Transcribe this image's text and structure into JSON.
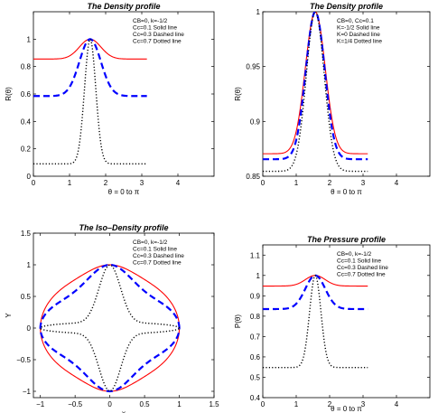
{
  "chart_data": [
    {
      "type": "line",
      "title": "The Density profile",
      "xlabel": "θ = 0 to π",
      "ylabel": "R(θ)",
      "xlim": [
        0,
        5
      ],
      "ylim": [
        0,
        1.2
      ],
      "xticks": [
        0,
        1,
        2,
        3,
        4
      ],
      "xtick_labels": [
        "0",
        "1",
        "2",
        "3",
        "4"
      ],
      "yticks": [
        0,
        0.2,
        0.4,
        0.6,
        0.8,
        1
      ],
      "ytick_labels": [
        "0",
        "0.2",
        "0.4",
        "0.6",
        "0.8",
        "1"
      ],
      "legend": [
        "CB=0, k=-1/2",
        "Cc=0.1 Solid line",
        "Cc=0.3  Dashed line",
        "Cc=0.7 Dotted line"
      ],
      "legend_position": "top-right",
      "series": [
        {
          "style": "solid",
          "color": "#ff0000",
          "base": 0.855,
          "peak": 1.0,
          "width": 0.42
        },
        {
          "style": "dashed",
          "color": "#0000ff",
          "base": 0.585,
          "peak": 1.0,
          "width": 0.42
        },
        {
          "style": "dotted",
          "color": "#000000",
          "base": 0.09,
          "peak": 1.0,
          "width": 0.22
        }
      ],
      "x_max": 3.1416
    },
    {
      "type": "line",
      "title": "The Density profile",
      "xlabel": "θ = 0 to π",
      "ylabel": "R(θ)",
      "xlim": [
        0,
        5
      ],
      "ylim": [
        0.85,
        1
      ],
      "xticks": [
        0,
        1,
        2,
        3,
        4
      ],
      "xtick_labels": [
        "0",
        "1",
        "2",
        "3",
        "4"
      ],
      "yticks": [
        0.85,
        0.9,
        0.95,
        1
      ],
      "ytick_labels": [
        "0.85",
        "0.9",
        "0.95",
        "1"
      ],
      "legend": [
        "CB=0, Cc=0.1",
        "K=-1/2 Solid line",
        "K=0  Dashed line",
        "K=1/4 Dotted line"
      ],
      "legend_position": "top-right",
      "series": [
        {
          "style": "solid",
          "color": "#ff0000",
          "base": 0.8705,
          "peak": 1.0,
          "width": 0.42
        },
        {
          "style": "dashed",
          "color": "#0000ff",
          "base": 0.8655,
          "peak": 1.0,
          "width": 0.4
        },
        {
          "style": "dotted",
          "color": "#000000",
          "base": 0.8545,
          "peak": 1.0,
          "width": 0.38
        }
      ],
      "x_max": 3.1416
    },
    {
      "type": "line",
      "title": "The Iso–Density profile",
      "xlabel": "x",
      "ylabel": "Y",
      "xlim": [
        -1.1,
        1.5
      ],
      "ylim": [
        -1.1,
        1.5
      ],
      "xticks": [
        -1,
        -0.5,
        0,
        0.5,
        1,
        1.5
      ],
      "xtick_labels": [
        "−1",
        "−0.5",
        "0",
        "0.5",
        "1",
        "1.5"
      ],
      "yticks": [
        -1,
        -0.5,
        0,
        0.5,
        1,
        1.5
      ],
      "ytick_labels": [
        "−1",
        "−0.5",
        "0",
        "0.5",
        "1",
        "1.5"
      ],
      "legend": [
        "CB=0, k=-1/2",
        "Cc=0.1 Solid line",
        "Cc=0.3  Dashed line",
        "Cc=0.7 Dotted line"
      ],
      "legend_position": "top-right",
      "series": [
        {
          "style": "solid",
          "color": "#ff0000",
          "base": 0.855,
          "peak": 1.0,
          "width": 0.42
        },
        {
          "style": "dashed",
          "color": "#0000ff",
          "base": 0.585,
          "peak": 1.0,
          "width": 0.42
        },
        {
          "style": "dotted",
          "color": "#000000",
          "base": 0.09,
          "peak": 1.0,
          "width": 0.22
        }
      ]
    },
    {
      "type": "line",
      "title": "The Pressure profile",
      "xlabel": "θ = 0 to π",
      "ylabel": "P(θ)",
      "xlim": [
        0,
        5
      ],
      "ylim": [
        0.4,
        1.15
      ],
      "xticks": [
        0,
        1,
        2,
        3,
        4
      ],
      "xtick_labels": [
        "0",
        "1",
        "2",
        "3",
        "4"
      ],
      "yticks": [
        0.4,
        0.5,
        0.6,
        0.7,
        0.8,
        0.9,
        1,
        1.1
      ],
      "ytick_labels": [
        "0.4",
        "0.5",
        "0.6",
        "0.7",
        "0.8",
        "0.9",
        "1",
        "1.1"
      ],
      "legend": [
        "CB=0, k=-1/2",
        "Cc=0.1 Solid line",
        "Cc=0.3  Dashed line",
        "Cc=0.7 Dotted line"
      ],
      "legend_position": "top-right",
      "series": [
        {
          "style": "solid",
          "color": "#ff0000",
          "base": 0.948,
          "peak": 1.0,
          "width": 0.42
        },
        {
          "style": "dashed",
          "color": "#0000ff",
          "base": 0.835,
          "peak": 1.0,
          "width": 0.42
        },
        {
          "style": "dotted",
          "color": "#000000",
          "base": 0.548,
          "peak": 1.0,
          "width": 0.24
        }
      ],
      "x_max": 3.1416
    }
  ]
}
